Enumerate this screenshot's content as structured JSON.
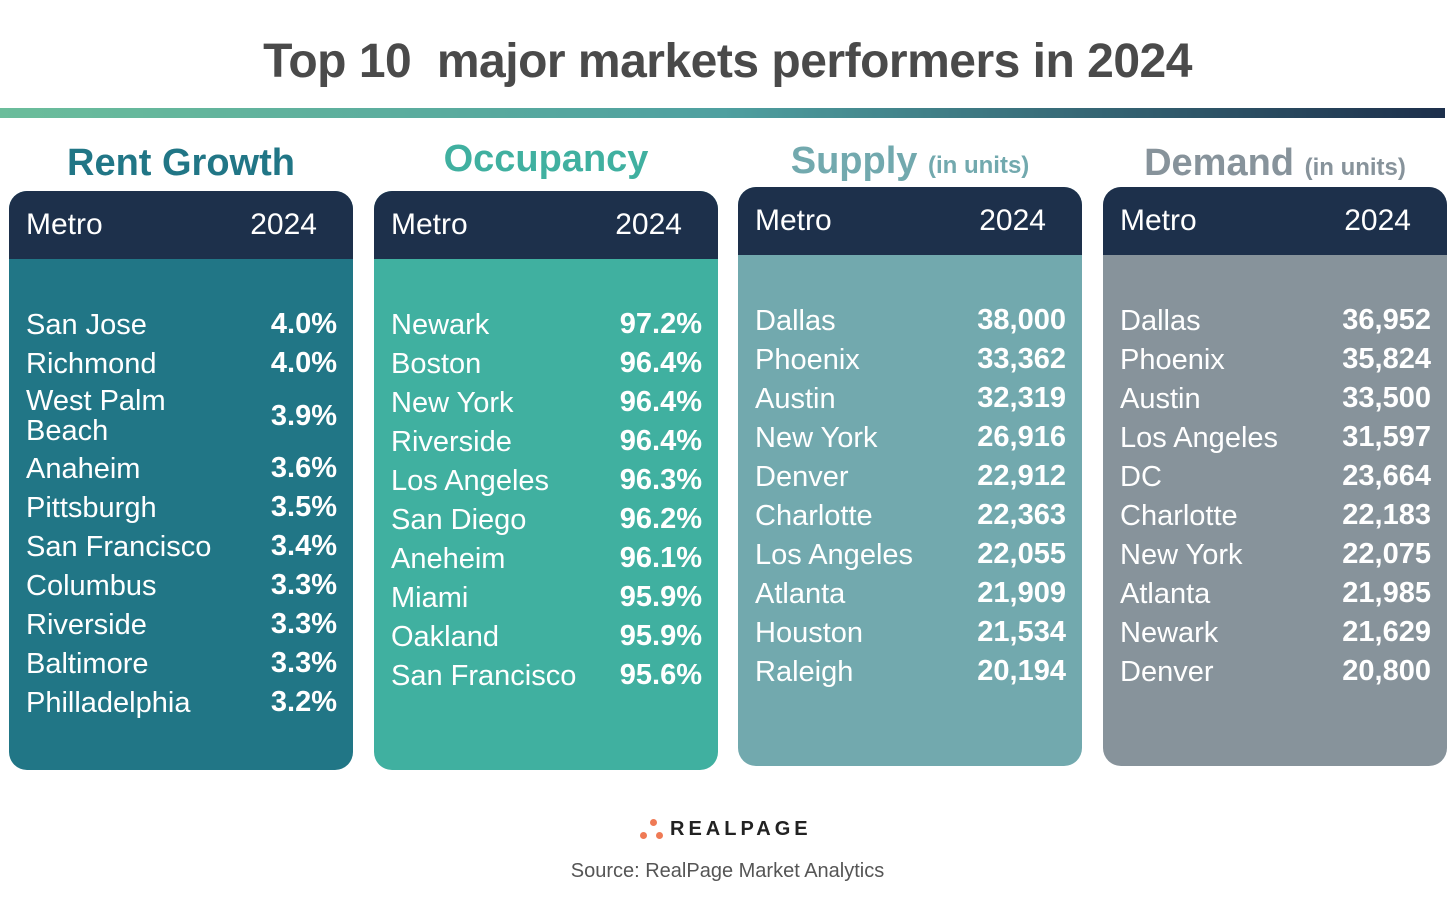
{
  "title": "Top 10  major markets performers in 2024",
  "colors": {
    "header": "#1d304b",
    "rent": "#217686",
    "occupancy": "#40b0a0",
    "supply": "#72a9ae",
    "demand": "#87939b",
    "logo_dots": "#ef7a55"
  },
  "panels": [
    {
      "title": "Rent Growth",
      "subtitle": "",
      "col1": "Metro",
      "col2": "2024",
      "rows": [
        {
          "metro": "San Jose",
          "value": "4.0%"
        },
        {
          "metro": "Richmond",
          "value": "4.0%"
        },
        {
          "metro": "West Palm Beach",
          "value": "3.9%"
        },
        {
          "metro": "Anaheim",
          "value": "3.6%"
        },
        {
          "metro": "Pittsburgh",
          "value": "3.5%"
        },
        {
          "metro": "San Francisco",
          "value": "3.4%"
        },
        {
          "metro": "Columbus",
          "value": "3.3%"
        },
        {
          "metro": "Riverside",
          "value": "3.3%"
        },
        {
          "metro": "Baltimore",
          "value": "3.3%"
        },
        {
          "metro": "Philladelphia",
          "value": "3.2%"
        }
      ]
    },
    {
      "title": "Occupancy",
      "subtitle": "",
      "col1": "Metro",
      "col2": "2024",
      "rows": [
        {
          "metro": "Newark",
          "value": "97.2%"
        },
        {
          "metro": "Boston",
          "value": "96.4%"
        },
        {
          "metro": "New York",
          "value": "96.4%"
        },
        {
          "metro": "Riverside",
          "value": "96.4%"
        },
        {
          "metro": "Los Angeles",
          "value": "96.3%"
        },
        {
          "metro": "San Diego",
          "value": "96.2%"
        },
        {
          "metro": "Aneheim",
          "value": "96.1%"
        },
        {
          "metro": "Miami",
          "value": "95.9%"
        },
        {
          "metro": "Oakland",
          "value": "95.9%"
        },
        {
          "metro": "San Francisco",
          "value": "95.6%"
        }
      ]
    },
    {
      "title": "Supply",
      "subtitle": "(in units)",
      "col1": "Metro",
      "col2": "2024",
      "rows": [
        {
          "metro": "Dallas",
          "value": "38,000"
        },
        {
          "metro": "Phoenix",
          "value": "33,362"
        },
        {
          "metro": "Austin",
          "value": "32,319"
        },
        {
          "metro": "New York",
          "value": "26,916"
        },
        {
          "metro": "Denver",
          "value": "22,912"
        },
        {
          "metro": "Charlotte",
          "value": "22,363"
        },
        {
          "metro": "Los Angeles",
          "value": "22,055"
        },
        {
          "metro": "Atlanta",
          "value": "21,909"
        },
        {
          "metro": "Houston",
          "value": "21,534"
        },
        {
          "metro": "Raleigh",
          "value": "20,194"
        }
      ]
    },
    {
      "title": "Demand",
      "subtitle": "(in units)",
      "col1": "Metro",
      "col2": "2024",
      "rows": [
        {
          "metro": "Dallas",
          "value": "36,952"
        },
        {
          "metro": "Phoenix",
          "value": "35,824"
        },
        {
          "metro": "Austin",
          "value": "33,500"
        },
        {
          "metro": "Los Angeles",
          "value": "31,597"
        },
        {
          "metro": "DC",
          "value": "23,664"
        },
        {
          "metro": "Charlotte",
          "value": "22,183"
        },
        {
          "metro": "New York",
          "value": "22,075"
        },
        {
          "metro": "Atlanta",
          "value": "21,985"
        },
        {
          "metro": "Newark",
          "value": "21,629"
        },
        {
          "metro": "Denver",
          "value": "20,800"
        }
      ]
    }
  ],
  "logo": "REALPAGE",
  "source": "Source: RealPage Market Analytics"
}
